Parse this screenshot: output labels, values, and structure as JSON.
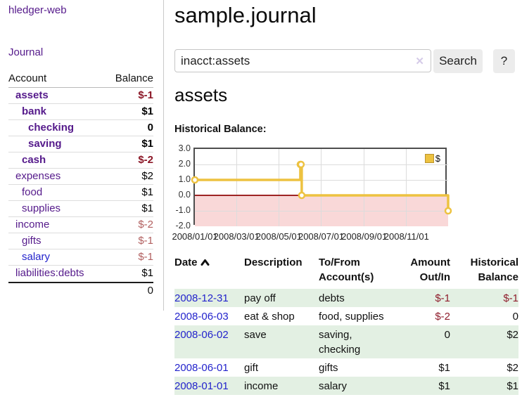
{
  "app": {
    "home_link": "hledger-web",
    "journal_link": "Journal"
  },
  "sidebar": {
    "header": {
      "account": "Account",
      "balance": "Balance"
    },
    "accounts": [
      {
        "name": "assets",
        "depth": 1,
        "bold": true,
        "balance": "$-1",
        "balance_class": "bal-neg-strong",
        "link_blue": false
      },
      {
        "name": "bank",
        "depth": 2,
        "bold": true,
        "balance": "$1",
        "balance_class": "",
        "link_blue": false
      },
      {
        "name": "checking",
        "depth": 3,
        "bold": true,
        "balance": "0",
        "balance_class": "",
        "link_blue": false
      },
      {
        "name": "saving",
        "depth": 3,
        "bold": true,
        "balance": "$1",
        "balance_class": "",
        "link_blue": false
      },
      {
        "name": "cash",
        "depth": 2,
        "bold": true,
        "balance": "$-2",
        "balance_class": "bal-neg-strong",
        "link_blue": false
      },
      {
        "name": "expenses",
        "depth": 1,
        "bold": false,
        "balance": "$2",
        "balance_class": "",
        "link_blue": false
      },
      {
        "name": "food",
        "depth": 2,
        "bold": false,
        "balance": "$1",
        "balance_class": "",
        "link_blue": false
      },
      {
        "name": "supplies",
        "depth": 2,
        "bold": false,
        "balance": "$1",
        "balance_class": "",
        "link_blue": false
      },
      {
        "name": "income",
        "depth": 1,
        "bold": false,
        "balance": "$-2",
        "balance_class": "bal-neg-soft",
        "link_blue": false
      },
      {
        "name": "gifts",
        "depth": 2,
        "bold": false,
        "balance": "$-1",
        "balance_class": "bal-neg-soft",
        "link_blue": false
      },
      {
        "name": "salary",
        "depth": 2,
        "bold": false,
        "balance": "$-1",
        "balance_class": "bal-neg-soft",
        "link_blue": true
      },
      {
        "name": "liabilities:debts",
        "depth": 1,
        "bold": false,
        "balance": "$1",
        "balance_class": "",
        "link_blue": false
      }
    ],
    "total": "0"
  },
  "main": {
    "title": "sample.journal",
    "search": {
      "value": "inacct:assets",
      "clear_char": "✕",
      "button": "Search",
      "help": "?"
    },
    "account_heading": "assets",
    "chart_heading": "Historical Balance:"
  },
  "chart_data": {
    "type": "line",
    "step": true,
    "title": "Historical Balance",
    "legend": {
      "entries": [
        "$"
      ],
      "position": "top-right"
    },
    "series": [
      {
        "name": "$",
        "color": "#edc240",
        "points": [
          [
            "2008-01-01",
            1
          ],
          [
            "2008-06-01",
            2
          ],
          [
            "2008-06-02",
            2
          ],
          [
            "2008-06-03",
            0
          ],
          [
            "2008-12-31",
            -1
          ]
        ]
      }
    ],
    "xlim": [
      "2008-01-01",
      "2008-12-31"
    ],
    "ylim": [
      -2,
      3
    ],
    "yticks": [
      3,
      2,
      1,
      0,
      -1,
      -2
    ],
    "ytick_labels": [
      "3.0",
      "2.0",
      "1.0",
      "0.0",
      "-1.0",
      "-2.0"
    ],
    "xticks": [
      "2008-01-01",
      "2008-03-01",
      "2008-05-01",
      "2008-07-01",
      "2008-09-01",
      "2008-11-01"
    ],
    "xtick_labels": [
      "2008/01/01",
      "2008/03/01",
      "2008/05/01",
      "2008/07/01",
      "2008/09/01",
      "2008/11/01"
    ],
    "grid": true,
    "negative_region_color": "#f9d8d8",
    "zero_line_color": "#9e2424"
  },
  "register": {
    "headers": {
      "date": "Date",
      "description": "Description",
      "accounts": "To/From Account(s)",
      "amount": "Amount Out/In",
      "balance": "Historical Balance"
    },
    "rows": [
      {
        "date": "2008-12-31",
        "description": "pay off",
        "accounts": "debts",
        "amount": "$-1",
        "amount_neg": true,
        "balance": "$-1",
        "balance_neg": true
      },
      {
        "date": "2008-06-03",
        "description": "eat & shop",
        "accounts": "food, supplies",
        "amount": "$-2",
        "amount_neg": true,
        "balance": "0",
        "balance_neg": false
      },
      {
        "date": "2008-06-02",
        "description": "save",
        "accounts": "saving, checking",
        "amount": "0",
        "amount_neg": false,
        "balance": "$2",
        "balance_neg": false
      },
      {
        "date": "2008-06-01",
        "description": "gift",
        "accounts": "gifts",
        "amount": "$1",
        "amount_neg": false,
        "balance": "$2",
        "balance_neg": false
      },
      {
        "date": "2008-01-01",
        "description": "income",
        "accounts": "salary",
        "amount": "$1",
        "amount_neg": false,
        "balance": "$1",
        "balance_neg": false
      }
    ]
  }
}
